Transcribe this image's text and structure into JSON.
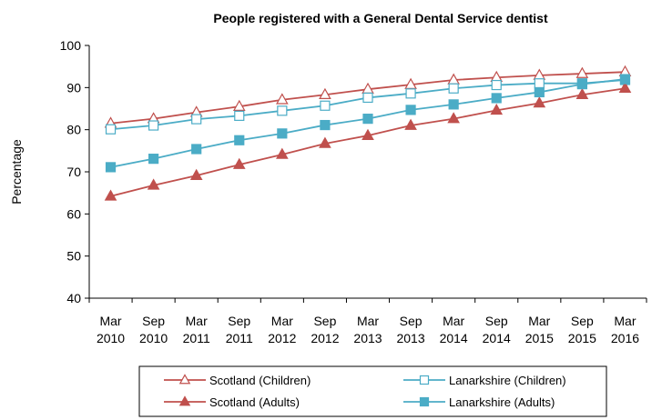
{
  "chart_data": {
    "type": "line",
    "title": "People registered with a General Dental Service dentist",
    "xlabel": "",
    "ylabel": "Percentage",
    "ylim": [
      40,
      100
    ],
    "yticks": [
      40,
      50,
      60,
      70,
      80,
      90,
      100
    ],
    "grid": false,
    "legend_position": "bottom",
    "categories": [
      [
        "Mar",
        "2010"
      ],
      [
        "Sep",
        "2010"
      ],
      [
        "Mar",
        "2011"
      ],
      [
        "Sep",
        "2011"
      ],
      [
        "Mar",
        "2012"
      ],
      [
        "Sep",
        "2012"
      ],
      [
        "Mar",
        "2013"
      ],
      [
        "Sep",
        "2013"
      ],
      [
        "Mar",
        "2014"
      ],
      [
        "Sep",
        "2014"
      ],
      [
        "Mar",
        "2015"
      ],
      [
        "Sep",
        "2015"
      ],
      [
        "Mar",
        "2016"
      ]
    ],
    "series": [
      {
        "name": "Scotland (Children)",
        "color": "#c0504d",
        "marker": "triangle",
        "filled": false,
        "values": [
          81.5,
          82.6,
          84.1,
          85.5,
          87.1,
          88.3,
          89.6,
          90.7,
          91.8,
          92.4,
          92.9,
          93.3,
          93.7
        ]
      },
      {
        "name": "Lanarkshire (Children)",
        "color": "#4bacc6",
        "marker": "square",
        "filled": false,
        "values": [
          80.1,
          81.0,
          82.5,
          83.3,
          84.5,
          85.7,
          87.6,
          88.6,
          89.8,
          90.6,
          91.0,
          91.0,
          91.8
        ]
      },
      {
        "name": "Scotland (Adults)",
        "color": "#c0504d",
        "marker": "triangle",
        "filled": true,
        "values": [
          64.2,
          66.8,
          69.1,
          71.7,
          74.1,
          76.7,
          78.6,
          81.0,
          82.6,
          84.6,
          86.3,
          88.3,
          89.8
        ]
      },
      {
        "name": "Lanarkshire (Adults)",
        "color": "#4bacc6",
        "marker": "square",
        "filled": true,
        "values": [
          71.1,
          73.1,
          75.4,
          77.5,
          79.1,
          81.1,
          82.6,
          84.7,
          86.0,
          87.5,
          88.9,
          90.8,
          92.0
        ]
      }
    ]
  }
}
